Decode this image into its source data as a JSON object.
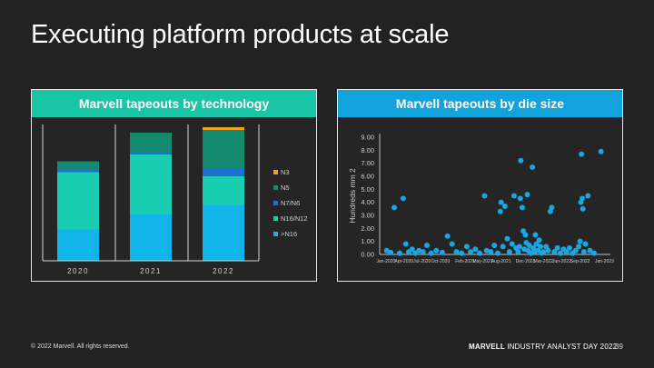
{
  "slide": {
    "title": "Executing platform products at scale",
    "footer_copyright": "© 2022 Marvell. All rights reserved.",
    "footer_brand": "MARVELL",
    "footer_event": "INDUSTRY ANALYST DAY 2022",
    "page_number": "39"
  },
  "chart_data": [
    {
      "type": "bar",
      "stacked": true,
      "title": "Marvell tapeouts by technology",
      "categories": [
        "2020",
        "2021",
        "2022"
      ],
      "ylim": [
        0,
        100
      ],
      "series": [
        {
          "name": ">N16",
          "color": "#12b5e8",
          "values": [
            23,
            34,
            41
          ]
        },
        {
          "name": "N16/N12",
          "color": "#18cdb1",
          "values": [
            42,
            44,
            21
          ]
        },
        {
          "name": "N7/N6",
          "color": "#1f6fd0",
          "values": [
            2,
            2,
            6
          ]
        },
        {
          "name": "N5",
          "color": "#138a6e",
          "values": [
            6,
            14,
            28
          ]
        },
        {
          "name": "N3",
          "color": "#f0a21e",
          "values": [
            0,
            0,
            2
          ]
        }
      ],
      "legend_order": [
        "N3",
        "N5",
        "N7/N6",
        "N16/N12",
        ">N16"
      ],
      "legend_position": "right",
      "grid": false
    },
    {
      "type": "scatter",
      "title": "Marvell tapeouts by die size",
      "ylabel": "Hundreds mm 2",
      "ylim": [
        0,
        9
      ],
      "yticks": [
        "0.00",
        "1.00",
        "2.00",
        "3.00",
        "4.00",
        "5.00",
        "6.00",
        "7.00",
        "8.00",
        "9.00"
      ],
      "xlim": [
        "2019-12-01",
        "2023-01-31"
      ],
      "xticks": [
        "Jan-2020",
        "Apr-2020",
        "Jul-2020",
        "Oct-2020",
        "Feb-2021",
        "May-2021",
        "Aug-2021",
        "Dec-2021",
        "Mar-2022",
        "Jun-2022",
        "Sep-2022",
        "Jan-2023"
      ],
      "xtick_dates": [
        "2020-01-01",
        "2020-04-01",
        "2020-07-01",
        "2020-10-01",
        "2021-02-01",
        "2021-05-01",
        "2021-08-01",
        "2021-12-01",
        "2022-03-01",
        "2022-06-01",
        "2022-09-01",
        "2023-01-01"
      ],
      "marker_color": "#1aa6e0",
      "grid": false,
      "points": [
        {
          "x": "2020-01-05",
          "y": 0.3
        },
        {
          "x": "2020-01-25",
          "y": 0.15
        },
        {
          "x": "2020-02-12",
          "y": 3.6
        },
        {
          "x": "2020-03-10",
          "y": 0.1
        },
        {
          "x": "2020-03-28",
          "y": 4.3
        },
        {
          "x": "2020-04-10",
          "y": 0.8
        },
        {
          "x": "2020-04-25",
          "y": 0.2
        },
        {
          "x": "2020-05-12",
          "y": 0.4
        },
        {
          "x": "2020-05-28",
          "y": 0.1
        },
        {
          "x": "2020-06-15",
          "y": 0.3
        },
        {
          "x": "2020-07-05",
          "y": 0.2
        },
        {
          "x": "2020-07-25",
          "y": 0.7
        },
        {
          "x": "2020-08-15",
          "y": 0.1
        },
        {
          "x": "2020-09-10",
          "y": 0.3
        },
        {
          "x": "2020-10-10",
          "y": 0.15
        },
        {
          "x": "2020-11-05",
          "y": 1.4
        },
        {
          "x": "2020-11-28",
          "y": 0.8
        },
        {
          "x": "2020-12-20",
          "y": 0.2
        },
        {
          "x": "2021-01-15",
          "y": 0.1
        },
        {
          "x": "2021-02-10",
          "y": 0.6
        },
        {
          "x": "2021-03-01",
          "y": 0.2
        },
        {
          "x": "2021-03-25",
          "y": 0.4
        },
        {
          "x": "2021-04-15",
          "y": 0.1
        },
        {
          "x": "2021-05-10",
          "y": 4.5
        },
        {
          "x": "2021-05-20",
          "y": 0.3
        },
        {
          "x": "2021-06-10",
          "y": 0.2
        },
        {
          "x": "2021-06-28",
          "y": 0.7
        },
        {
          "x": "2021-07-15",
          "y": 0.1
        },
        {
          "x": "2021-07-28",
          "y": 3.3
        },
        {
          "x": "2021-08-01",
          "y": 4.0
        },
        {
          "x": "2021-08-10",
          "y": 0.6
        },
        {
          "x": "2021-08-20",
          "y": 3.7
        },
        {
          "x": "2021-09-01",
          "y": 1.2
        },
        {
          "x": "2021-09-12",
          "y": 0.2
        },
        {
          "x": "2021-09-25",
          "y": 0.8
        },
        {
          "x": "2021-10-05",
          "y": 4.5
        },
        {
          "x": "2021-10-15",
          "y": 0.5
        },
        {
          "x": "2021-10-25",
          "y": 0.2
        },
        {
          "x": "2021-11-01",
          "y": 0.6
        },
        {
          "x": "2021-11-05",
          "y": 4.3
        },
        {
          "x": "2021-11-08",
          "y": 7.2
        },
        {
          "x": "2021-11-15",
          "y": 3.6
        },
        {
          "x": "2021-11-20",
          "y": 1.8
        },
        {
          "x": "2021-11-25",
          "y": 0.4
        },
        {
          "x": "2021-12-01",
          "y": 1.5
        },
        {
          "x": "2021-12-05",
          "y": 0.9
        },
        {
          "x": "2021-12-10",
          "y": 4.6
        },
        {
          "x": "2021-12-15",
          "y": 0.3
        },
        {
          "x": "2021-12-20",
          "y": 0.7
        },
        {
          "x": "2021-12-28",
          "y": 0.1
        },
        {
          "x": "2022-01-05",
          "y": 6.7
        },
        {
          "x": "2022-01-10",
          "y": 0.5
        },
        {
          "x": "2022-01-15",
          "y": 0.2
        },
        {
          "x": "2022-01-20",
          "y": 1.5
        },
        {
          "x": "2022-01-25",
          "y": 0.8
        },
        {
          "x": "2022-02-01",
          "y": 0.3
        },
        {
          "x": "2022-02-08",
          "y": 1.1
        },
        {
          "x": "2022-02-15",
          "y": 0.6
        },
        {
          "x": "2022-02-20",
          "y": 0.1
        },
        {
          "x": "2022-03-01",
          "y": 0.2
        },
        {
          "x": "2022-03-15",
          "y": 0.6
        },
        {
          "x": "2022-03-25",
          "y": 0.3
        },
        {
          "x": "2022-04-05",
          "y": 3.3
        },
        {
          "x": "2022-04-12",
          "y": 3.6
        },
        {
          "x": "2022-04-25",
          "y": 0.2
        },
        {
          "x": "2022-05-10",
          "y": 0.5
        },
        {
          "x": "2022-05-25",
          "y": 0.1
        },
        {
          "x": "2022-06-10",
          "y": 0.4
        },
        {
          "x": "2022-06-25",
          "y": 0.2
        },
        {
          "x": "2022-07-10",
          "y": 0.5
        },
        {
          "x": "2022-07-25",
          "y": 0.1
        },
        {
          "x": "2022-08-10",
          "y": 0.3
        },
        {
          "x": "2022-08-25",
          "y": 0.6
        },
        {
          "x": "2022-09-01",
          "y": 1.0
        },
        {
          "x": "2022-09-05",
          "y": 4.0
        },
        {
          "x": "2022-09-08",
          "y": 7.7
        },
        {
          "x": "2022-09-12",
          "y": 4.3
        },
        {
          "x": "2022-09-15",
          "y": 3.5
        },
        {
          "x": "2022-09-20",
          "y": 0.2
        },
        {
          "x": "2022-09-28",
          "y": 0.8
        },
        {
          "x": "2022-10-10",
          "y": 4.5
        },
        {
          "x": "2022-10-20",
          "y": 0.3
        },
        {
          "x": "2022-11-10",
          "y": 0.1
        },
        {
          "x": "2022-12-15",
          "y": 7.9
        }
      ]
    }
  ]
}
